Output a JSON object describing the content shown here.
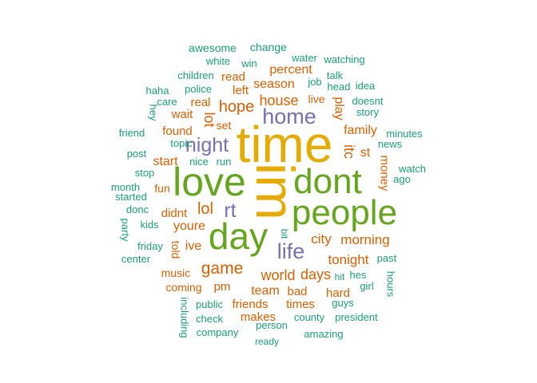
{
  "palette": {
    "gold": "#e6ab02",
    "green": "#66a61e",
    "purple": "#7570b3",
    "orange": "#d95f02",
    "teal": "#1b9e77"
  },
  "words": [
    {
      "text": "time",
      "color": "gold"
    },
    {
      "text": "im",
      "color": "gold"
    },
    {
      "text": "love",
      "color": "green"
    },
    {
      "text": "dont",
      "color": "green"
    },
    {
      "text": "people",
      "color": "green"
    },
    {
      "text": "day",
      "color": "green"
    },
    {
      "text": "home",
      "color": "purple"
    },
    {
      "text": "night",
      "color": "purple"
    },
    {
      "text": "rt",
      "color": "purple"
    },
    {
      "text": "life",
      "color": "purple"
    },
    {
      "text": "game",
      "color": "orange"
    },
    {
      "text": "hope",
      "color": "orange"
    },
    {
      "text": "house",
      "color": "orange"
    },
    {
      "text": "lol",
      "color": "orange"
    },
    {
      "text": "world",
      "color": "orange"
    },
    {
      "text": "days",
      "color": "orange"
    },
    {
      "text": "city",
      "color": "orange"
    },
    {
      "text": "morning",
      "color": "orange"
    },
    {
      "text": "tonight",
      "color": "orange"
    },
    {
      "text": "family",
      "color": "orange"
    },
    {
      "text": "youre",
      "color": "orange"
    },
    {
      "text": "start",
      "color": "orange"
    },
    {
      "text": "season",
      "color": "orange"
    },
    {
      "text": "percent",
      "color": "orange"
    },
    {
      "text": "lot",
      "color": "orange"
    },
    {
      "text": "play",
      "color": "orange"
    },
    {
      "text": "itc",
      "color": "orange"
    },
    {
      "text": "st",
      "color": "orange"
    },
    {
      "text": "money",
      "color": "orange"
    },
    {
      "text": "found",
      "color": "orange"
    },
    {
      "text": "didnt",
      "color": "orange"
    },
    {
      "text": "team",
      "color": "orange"
    },
    {
      "text": "friends",
      "color": "orange"
    },
    {
      "text": "times",
      "color": "orange"
    },
    {
      "text": "makes",
      "color": "orange"
    },
    {
      "text": "hard",
      "color": "orange"
    },
    {
      "text": "bad",
      "color": "orange"
    },
    {
      "text": "pm",
      "color": "orange"
    },
    {
      "text": "coming",
      "color": "orange"
    },
    {
      "text": "music",
      "color": "orange"
    },
    {
      "text": "live",
      "color": "orange"
    },
    {
      "text": "ive",
      "color": "orange"
    },
    {
      "text": "told",
      "color": "orange"
    },
    {
      "text": "fun",
      "color": "orange"
    },
    {
      "text": "read",
      "color": "orange"
    },
    {
      "text": "left",
      "color": "orange"
    },
    {
      "text": "real",
      "color": "orange"
    },
    {
      "text": "set",
      "color": "orange"
    },
    {
      "text": "wait",
      "color": "orange"
    },
    {
      "text": "awesome",
      "color": "teal"
    },
    {
      "text": "change",
      "color": "teal"
    },
    {
      "text": "white",
      "color": "teal"
    },
    {
      "text": "win",
      "color": "teal"
    },
    {
      "text": "water",
      "color": "teal"
    },
    {
      "text": "watching",
      "color": "teal"
    },
    {
      "text": "children",
      "color": "teal"
    },
    {
      "text": "talk",
      "color": "teal"
    },
    {
      "text": "job",
      "color": "teal"
    },
    {
      "text": "head",
      "color": "teal"
    },
    {
      "text": "idea",
      "color": "teal"
    },
    {
      "text": "haha",
      "color": "teal"
    },
    {
      "text": "police",
      "color": "teal"
    },
    {
      "text": "doesnt",
      "color": "teal"
    },
    {
      "text": "care",
      "color": "teal"
    },
    {
      "text": "story",
      "color": "teal"
    },
    {
      "text": "hey",
      "color": "teal"
    },
    {
      "text": "friend",
      "color": "teal"
    },
    {
      "text": "topic",
      "color": "teal"
    },
    {
      "text": "minutes",
      "color": "teal"
    },
    {
      "text": "news",
      "color": "teal"
    },
    {
      "text": "post",
      "color": "teal"
    },
    {
      "text": "nice",
      "color": "teal"
    },
    {
      "text": "run",
      "color": "teal"
    },
    {
      "text": "watch",
      "color": "teal"
    },
    {
      "text": "ago",
      "color": "teal"
    },
    {
      "text": "stop",
      "color": "teal"
    },
    {
      "text": "month",
      "color": "teal"
    },
    {
      "text": "started",
      "color": "teal"
    },
    {
      "text": "donc",
      "color": "teal"
    },
    {
      "text": "kids",
      "color": "teal"
    },
    {
      "text": "party",
      "color": "teal"
    },
    {
      "text": "friday",
      "color": "teal"
    },
    {
      "text": "center",
      "color": "teal"
    },
    {
      "text": "bit",
      "color": "teal"
    },
    {
      "text": "past",
      "color": "teal"
    },
    {
      "text": "hes",
      "color": "teal"
    },
    {
      "text": "girl",
      "color": "teal"
    },
    {
      "text": "hours",
      "color": "teal"
    },
    {
      "text": "public",
      "color": "teal"
    },
    {
      "text": "guys",
      "color": "teal"
    },
    {
      "text": "check",
      "color": "teal"
    },
    {
      "text": "county",
      "color": "teal"
    },
    {
      "text": "president",
      "color": "teal"
    },
    {
      "text": "including",
      "color": "teal"
    },
    {
      "text": "company",
      "color": "teal"
    },
    {
      "text": "person",
      "color": "teal"
    },
    {
      "text": "amazing",
      "color": "teal"
    },
    {
      "text": "ready",
      "color": "teal"
    },
    {
      "text": "hit",
      "color": "teal"
    }
  ]
}
